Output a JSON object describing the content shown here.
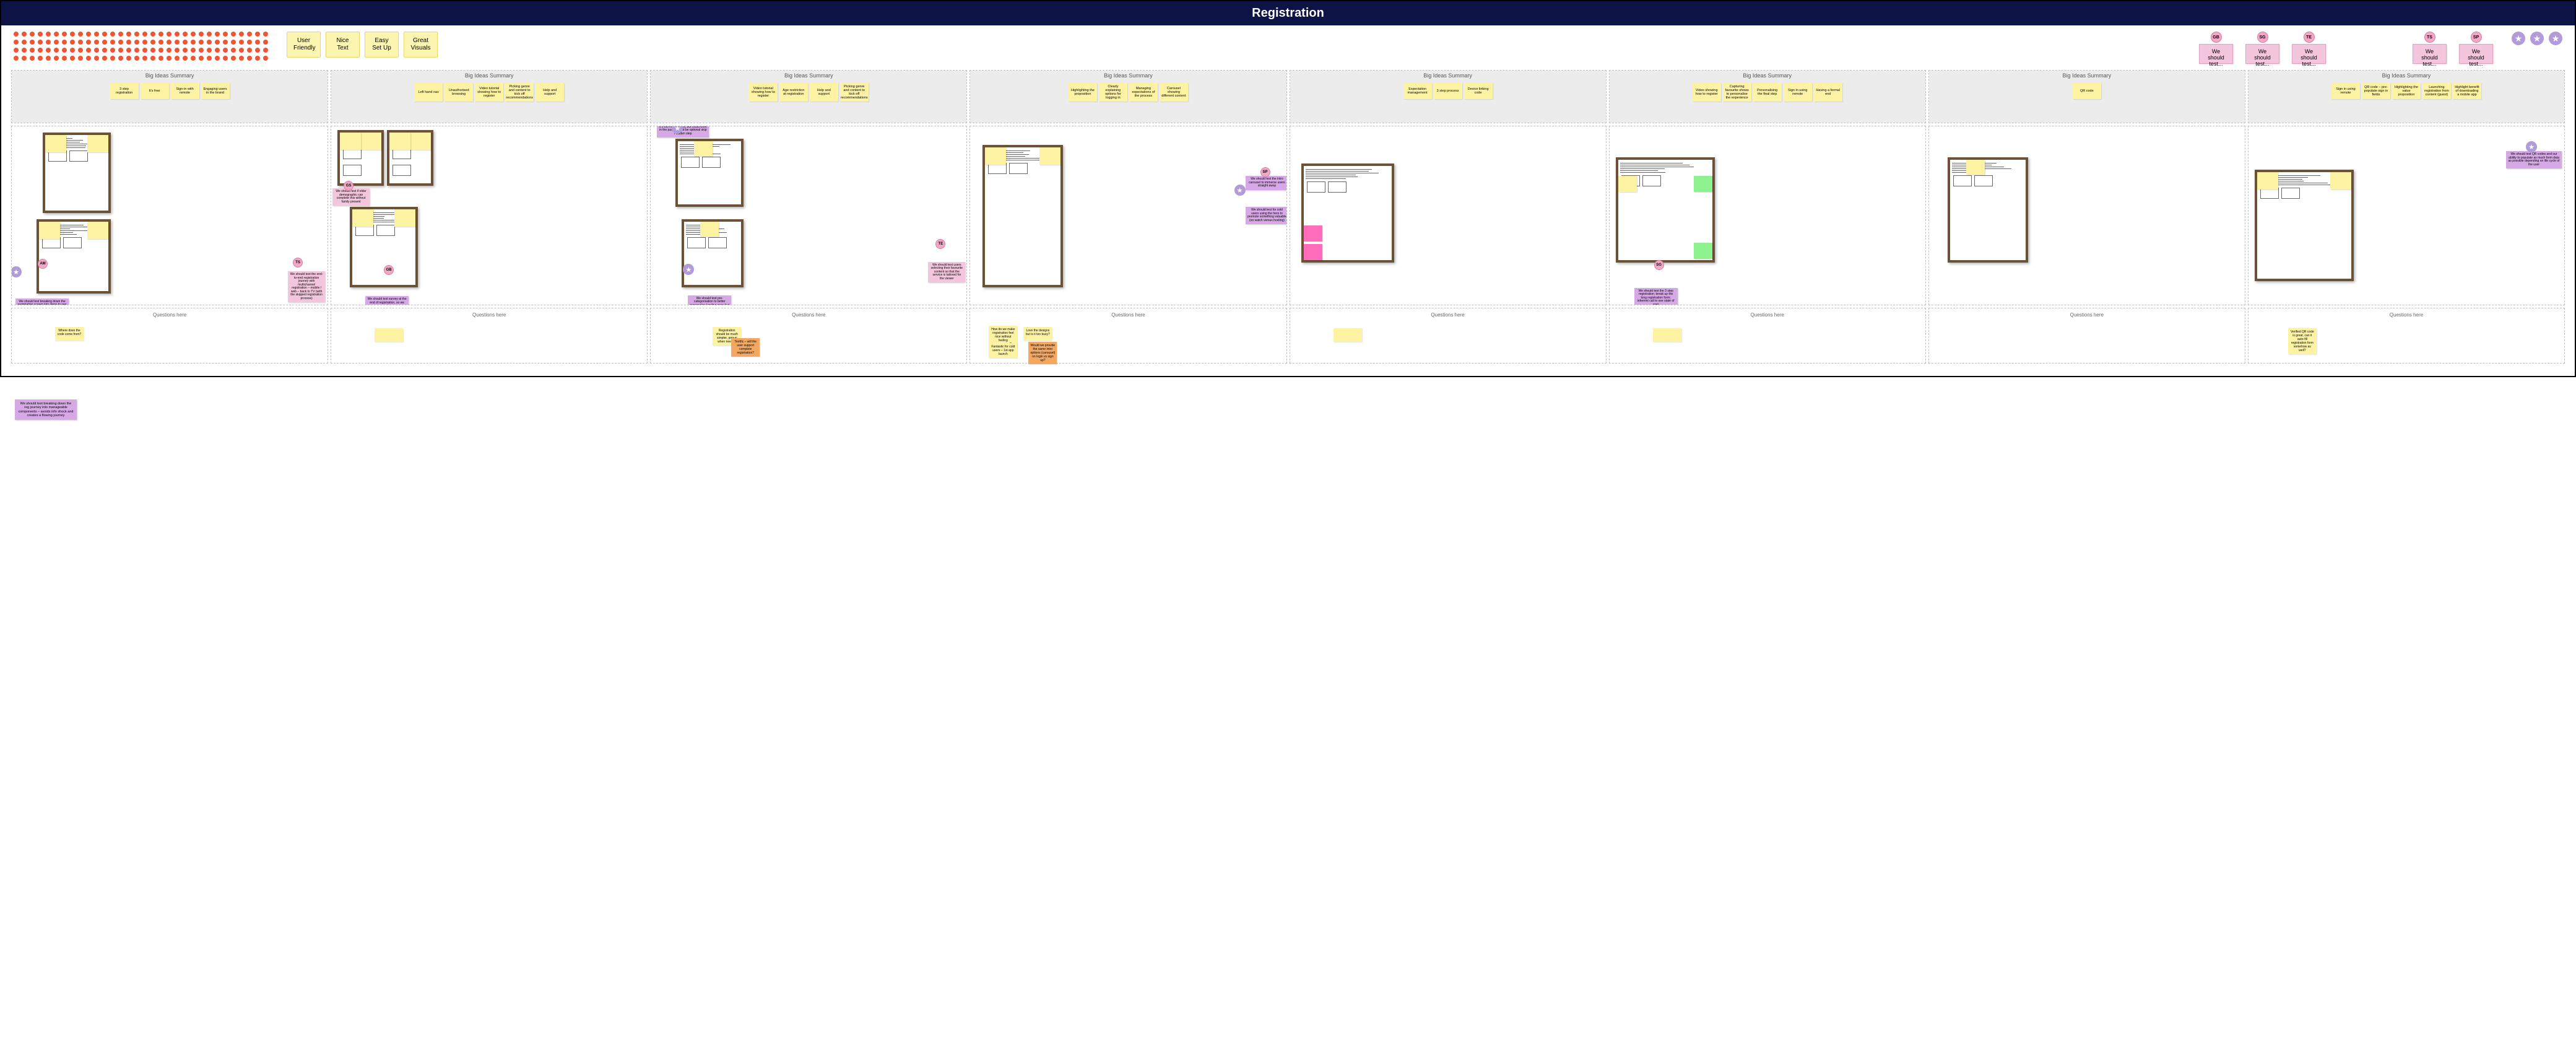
{
  "title": "Registration",
  "colors": {
    "header_bg": "#0e1345",
    "dot": "#ee5633",
    "tag_bg": "#fdf6b2",
    "pink": "#f4c6de",
    "avatar": "#f2a7c6",
    "star": "#b19cd9",
    "sticky": "#fdf3a3",
    "purple": "#d6a9e6",
    "pink_sm": "#f4c6de",
    "orange": "#f4a760",
    "wood": "#6b5135",
    "lane_border": "#bfbfbf",
    "ideas_bg": "#ececec",
    "hot_pink": "#ff6dbb",
    "green": "#8ef28e"
  },
  "dots": {
    "rows": 4,
    "cols": 32
  },
  "tags": [
    "User Friendly",
    "Nice Text",
    "Easy Set Up",
    "Great Visuals"
  ],
  "top_tests_a": [
    {
      "av": "GB",
      "txt": "We should test..."
    },
    {
      "av": "SG",
      "txt": "We should test..."
    },
    {
      "av": "TE",
      "txt": "We should test..."
    }
  ],
  "top_tests_b": [
    {
      "av": "TS",
      "txt": "We should test..."
    },
    {
      "av": "SP",
      "txt": "We should test..."
    }
  ],
  "stars": 3,
  "ideas_header": "Big Ideas Summary",
  "questions_header": "Questions here",
  "lanes": [
    {
      "ideas": [
        "3 step registration",
        "It's free",
        "Sign-in with remote",
        "Engaging users in the brand"
      ],
      "purples": [
        {
          "av": "AM",
          "txt": "We should test breaking down the registration screen into steps to see if it could enhance conversions",
          "style": "left:6px; bottom:-12px; width:86px;"
        }
      ],
      "stars": [
        {
          "style": "left:-2px; bottom:44px;"
        }
      ],
      "pinks": [
        {
          "av": "TS",
          "txt": "We should test the end-to-end registration journey with multichannel registration – mobile / web – back to TV (with the skipped registration process)",
          "style": "right:4px; bottom:4px;"
        }
      ],
      "avatars": [
        {
          "txt": "AM",
          "style": "left:42px; bottom:58px;"
        },
        {
          "txt": "TS",
          "style": "right:40px; bottom:60px;"
        }
      ],
      "q": [
        {
          "txt": "Where does the code come from?",
          "style": "left:70px; top:30px;"
        }
      ]
    },
    {
      "ideas": [
        "Left hand nav",
        "Unauthorised browsing",
        "Video tutorial showing how to register",
        "Picking genre and content to kick off recommendations",
        "Help and support"
      ],
      "purples": [
        {
          "txt": "We should test survey at the end of registration, so we can create more personalised experiences",
          "style": "left:55px; bottom:-14px;"
        }
      ],
      "pinks": [
        {
          "av": "GS",
          "txt": "We should test if older demographic can complete this without family present",
          "style": "left:2px; top:100px;"
        }
      ],
      "avatars": [
        {
          "txt": "GS",
          "style": "left:20px; top:88px;"
        },
        {
          "txt": "GB",
          "style": "left:85px; bottom:48px;"
        }
      ],
      "q": [
        {
          "txt": "",
          "style": "left:70px; top:32px;"
        }
      ]
    },
    {
      "ideas": [
        "Video tutorial showing how to register",
        "Age restriction at registration",
        "Help and support",
        "Picking genre and content to kick off recommendations"
      ],
      "purples": [
        {
          "txt": "We should test this pref at reg – is it 2 too many steps, but could work in the past – could be optional skip / hidden step",
          "style": "left:10px; top:-10px; width:84px;"
        },
        {
          "txt": "We should test pre-categorisation to better personalise landing page but also need to avoid reg screen overload",
          "style": "left:60px; bottom:-18px;"
        }
      ],
      "pinks": [
        {
          "av": "TE",
          "txt": "We should test users selecting their favourite content so that the service is tailored for the viewer",
          "style": "right:2px; bottom:36px;"
        }
      ],
      "avatars": [
        {
          "txt": "TE",
          "style": "right:34px; bottom:90px;"
        }
      ],
      "stars": [
        {
          "style": "left:34px; top:-6px;"
        },
        {
          "style": "left:52px; bottom:48px;"
        }
      ],
      "q": [
        {
          "txt": "Registration should be much simpler, popup when needed",
          "style": "left:100px; top:30px;"
        },
        {
          "txt": "Terrific – will the user support complete registration?",
          "cls": "orange",
          "style": "left:130px; top:48px;"
        }
      ]
    },
    {
      "ideas": [
        "Highlighting the proposition",
        "Clearly explaining options for logging in",
        "Managing expectations of the process",
        "Carousel showing different content"
      ],
      "purples": [
        {
          "txt": "We should test the intro carousel to immerse users straight away",
          "style": "right:-4px; top:80px;"
        },
        {
          "txt": "We should test for cold users using the hero to promote something valuable (on watch versus hosting)",
          "style": "right:-4px; top:130px;"
        }
      ],
      "avatars": [
        {
          "txt": "SP",
          "style": "right:26px; top:66px;"
        }
      ],
      "stars": [
        {
          "style": "right:66px; top:94px;"
        }
      ],
      "q": [
        {
          "txt": "How do we make registration feel nice without feeling aggressive?",
          "style": "left:30px; top:28px;"
        },
        {
          "txt": "Love the designs but is it too busy?",
          "style": "left:86px; top:30px;"
        },
        {
          "txt": "Fantastic for cold users – 1st app launch",
          "style": "left:30px; top:56px;"
        },
        {
          "txt": "Would we provide the same intro options (carousel) on login vs sign up?",
          "cls": "orange",
          "style": "left:94px; top:54px;"
        }
      ]
    },
    {
      "ideas": [
        "Expectation management",
        "3 step process",
        "Device linking code"
      ],
      "purples": [],
      "pinks": [],
      "avatars": [],
      "stars": [],
      "q": [
        {
          "txt": "",
          "style": "left:70px; top:32px;"
        }
      ]
    },
    {
      "ideas": [
        "Video showing how to register",
        "Capturing favourite shows to personalise the experience",
        "Personalising the final step",
        "Sign in using remote",
        "Having a formal end"
      ],
      "purples": [
        {
          "txt": "We should test the 3 step registration; break up the long registration form; inherent call to see state of user",
          "style": "left:40px; bottom:-6px;"
        }
      ],
      "avatars": [
        {
          "txt": "SG",
          "style": "left:72px; bottom:56px;"
        }
      ],
      "q": [
        {
          "txt": "",
          "style": "left:70px; top:32px;"
        }
      ]
    },
    {
      "ideas": [
        "QR code"
      ],
      "purples": [],
      "pinks": [],
      "avatars": [],
      "stars": [],
      "q": []
    },
    {
      "ideas": [
        "Sign in using remote",
        "QR code – pre-populate sign in fields",
        "Highlighting the value proposition",
        "Launching registration from content (guest)",
        "Highlight benefit of downloading a mobile app"
      ],
      "purples": [
        {
          "txt": "We should test QR codes and our ability to populate as much form data as possible depending on life cycle of the user",
          "style": "right:4px; top:40px; width:90px;"
        }
      ],
      "stars": [
        {
          "style": "right:44px; top:24px;"
        }
      ],
      "q": [
        {
          "txt": "Verified QR code is great, can it auto-fill registration form somehow as well?",
          "style": "left:64px; top:32px;"
        }
      ]
    }
  ],
  "purple_global": [
    {
      "txt": "We should test breaking down the reg journey into manageable components – avoids info shock and creates a flowing journey",
      "style": "position:absolute; left:24px; top:645px; width:100px; background:#d6a9e6; font-size:5.5px; padding:4px; line-height:1.15; text-align:center; box-shadow:1px 1px 2px rgba(0,0,0,0.2); z-index:20;"
    }
  ]
}
